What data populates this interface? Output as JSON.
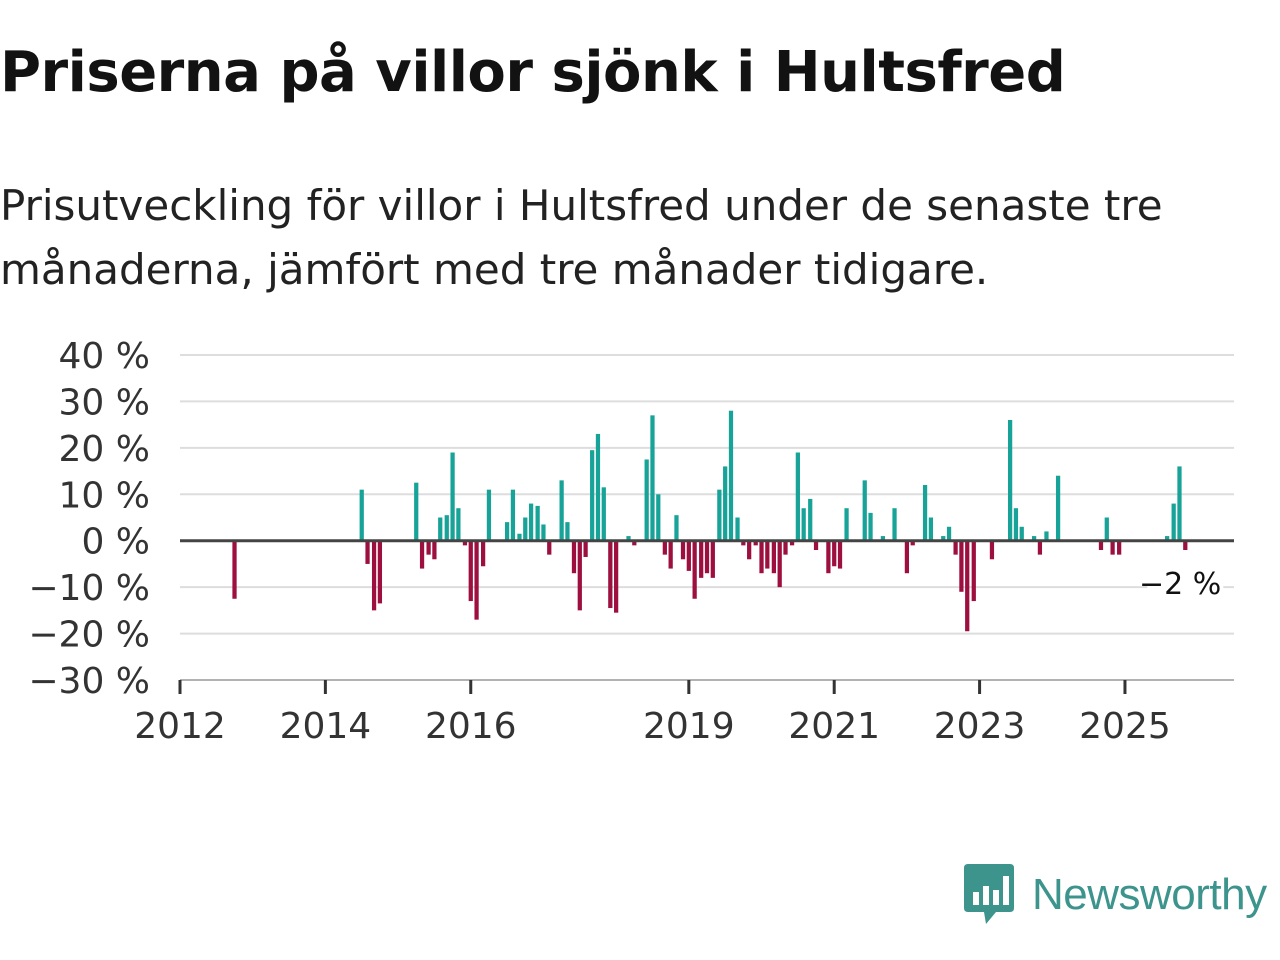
{
  "title": "Priserna på villor sjönk i Hultsfred",
  "subtitle": "Prisutveckling för villor i Hultsfred under de senaste tre månaderna, jämfört med tre månader tidigare.",
  "brand": "Newsworthy",
  "colors": {
    "positive": "#17a398",
    "negative": "#9d0f3e",
    "grid": "#dddddd",
    "axis": "#333333",
    "brand": "#3c948c"
  },
  "chart_data": {
    "type": "bar",
    "title": "Priserna på villor sjönk i Hultsfred",
    "xlabel": "",
    "ylabel": "",
    "ylim": [
      -30,
      40
    ],
    "y_ticks": [
      40,
      30,
      20,
      10,
      0,
      -10,
      -20,
      -30
    ],
    "y_tick_labels": [
      "40 %",
      "30 %",
      "20 %",
      "10 %",
      "0 %",
      "−10 %",
      "−20 %",
      "−30 %"
    ],
    "x_range": [
      2012.0,
      2026.5
    ],
    "x_ticks": [
      2012,
      2014,
      2016,
      2019,
      2021,
      2023,
      2025
    ],
    "x_tick_labels": [
      "2012",
      "2014",
      "2016",
      "2019",
      "2021",
      "2023",
      "2025"
    ],
    "annotation": {
      "x": 2025.83,
      "y": -2,
      "label": "−2 %"
    },
    "bars": [
      {
        "x": 2012.75,
        "y": -12.5
      },
      {
        "x": 2014.5,
        "y": 11
      },
      {
        "x": 2014.58,
        "y": -5
      },
      {
        "x": 2014.67,
        "y": -15
      },
      {
        "x": 2014.75,
        "y": -13.5
      },
      {
        "x": 2015.25,
        "y": 12.5
      },
      {
        "x": 2015.33,
        "y": -6
      },
      {
        "x": 2015.42,
        "y": -3
      },
      {
        "x": 2015.5,
        "y": -4
      },
      {
        "x": 2015.58,
        "y": 5
      },
      {
        "x": 2015.67,
        "y": 5.5
      },
      {
        "x": 2015.75,
        "y": 19
      },
      {
        "x": 2015.83,
        "y": 7
      },
      {
        "x": 2015.92,
        "y": -1
      },
      {
        "x": 2016.0,
        "y": -13
      },
      {
        "x": 2016.08,
        "y": -17
      },
      {
        "x": 2016.17,
        "y": -5.5
      },
      {
        "x": 2016.25,
        "y": 11
      },
      {
        "x": 2016.5,
        "y": 4
      },
      {
        "x": 2016.58,
        "y": 11
      },
      {
        "x": 2016.67,
        "y": 1.5
      },
      {
        "x": 2016.75,
        "y": 5
      },
      {
        "x": 2016.83,
        "y": 8
      },
      {
        "x": 2016.92,
        "y": 7.5
      },
      {
        "x": 2017.0,
        "y": 3.5
      },
      {
        "x": 2017.08,
        "y": -3
      },
      {
        "x": 2017.25,
        "y": 13
      },
      {
        "x": 2017.33,
        "y": 4
      },
      {
        "x": 2017.42,
        "y": -7
      },
      {
        "x": 2017.5,
        "y": -15
      },
      {
        "x": 2017.58,
        "y": -3.5
      },
      {
        "x": 2017.67,
        "y": 19.5
      },
      {
        "x": 2017.75,
        "y": 23
      },
      {
        "x": 2017.83,
        "y": 11.5
      },
      {
        "x": 2017.92,
        "y": -14.5
      },
      {
        "x": 2018.0,
        "y": -15.5
      },
      {
        "x": 2018.17,
        "y": 1
      },
      {
        "x": 2018.25,
        "y": -1
      },
      {
        "x": 2018.42,
        "y": 17.5
      },
      {
        "x": 2018.5,
        "y": 27
      },
      {
        "x": 2018.58,
        "y": 10
      },
      {
        "x": 2018.67,
        "y": -3
      },
      {
        "x": 2018.75,
        "y": -6
      },
      {
        "x": 2018.83,
        "y": 5.5
      },
      {
        "x": 2018.92,
        "y": -4
      },
      {
        "x": 2019.0,
        "y": -6.5
      },
      {
        "x": 2019.08,
        "y": -12.5
      },
      {
        "x": 2019.17,
        "y": -8
      },
      {
        "x": 2019.25,
        "y": -7
      },
      {
        "x": 2019.33,
        "y": -8
      },
      {
        "x": 2019.42,
        "y": 11
      },
      {
        "x": 2019.5,
        "y": 16
      },
      {
        "x": 2019.58,
        "y": 28
      },
      {
        "x": 2019.67,
        "y": 5
      },
      {
        "x": 2019.75,
        "y": -1
      },
      {
        "x": 2019.83,
        "y": -4
      },
      {
        "x": 2019.92,
        "y": -1
      },
      {
        "x": 2020.0,
        "y": -7
      },
      {
        "x": 2020.08,
        "y": -6
      },
      {
        "x": 2020.17,
        "y": -7
      },
      {
        "x": 2020.25,
        "y": -10
      },
      {
        "x": 2020.33,
        "y": -3
      },
      {
        "x": 2020.42,
        "y": -1
      },
      {
        "x": 2020.5,
        "y": 19
      },
      {
        "x": 2020.58,
        "y": 7
      },
      {
        "x": 2020.67,
        "y": 9
      },
      {
        "x": 2020.75,
        "y": -2
      },
      {
        "x": 2020.92,
        "y": -7
      },
      {
        "x": 2021.0,
        "y": -5.5
      },
      {
        "x": 2021.08,
        "y": -6
      },
      {
        "x": 2021.17,
        "y": 7
      },
      {
        "x": 2021.42,
        "y": 13
      },
      {
        "x": 2021.5,
        "y": 6
      },
      {
        "x": 2021.67,
        "y": 1
      },
      {
        "x": 2021.83,
        "y": 7
      },
      {
        "x": 2022.0,
        "y": -7
      },
      {
        "x": 2022.08,
        "y": -1
      },
      {
        "x": 2022.25,
        "y": 12
      },
      {
        "x": 2022.33,
        "y": 5
      },
      {
        "x": 2022.5,
        "y": 1
      },
      {
        "x": 2022.58,
        "y": 3
      },
      {
        "x": 2022.67,
        "y": -3
      },
      {
        "x": 2022.75,
        "y": -11
      },
      {
        "x": 2022.83,
        "y": -19.5
      },
      {
        "x": 2022.92,
        "y": -13
      },
      {
        "x": 2023.17,
        "y": -4
      },
      {
        "x": 2023.42,
        "y": 26
      },
      {
        "x": 2023.5,
        "y": 7
      },
      {
        "x": 2023.58,
        "y": 3
      },
      {
        "x": 2023.75,
        "y": 1
      },
      {
        "x": 2023.83,
        "y": -3
      },
      {
        "x": 2023.92,
        "y": 2
      },
      {
        "x": 2024.08,
        "y": 14
      },
      {
        "x": 2024.67,
        "y": -2
      },
      {
        "x": 2024.75,
        "y": 5
      },
      {
        "x": 2024.83,
        "y": -3
      },
      {
        "x": 2024.92,
        "y": -3
      },
      {
        "x": 2025.58,
        "y": 1
      },
      {
        "x": 2025.67,
        "y": 8
      },
      {
        "x": 2025.75,
        "y": 16
      },
      {
        "x": 2025.83,
        "y": -2
      }
    ]
  }
}
